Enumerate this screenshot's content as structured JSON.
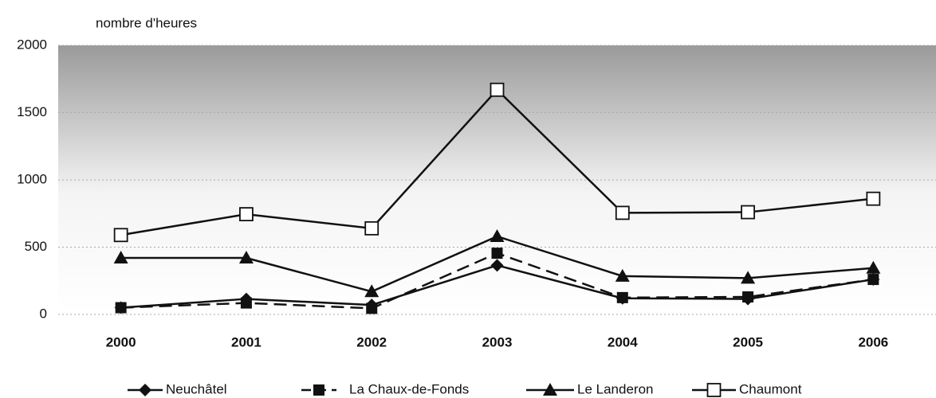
{
  "chart_data": {
    "type": "line",
    "y_axis_label": "nombre d'heures",
    "categories": [
      "2000",
      "2001",
      "2002",
      "2003",
      "2004",
      "2005",
      "2006"
    ],
    "series": [
      {
        "name": "Neuchâtel",
        "color": "#111111",
        "marker": "diamond",
        "dashed": false,
        "values": [
          50,
          115,
          70,
          365,
          120,
          115,
          260
        ]
      },
      {
        "name": "La Chaux-de-Fonds",
        "color": "#111111",
        "marker": "square",
        "dashed": true,
        "values": [
          50,
          85,
          45,
          455,
          125,
          130,
          260
        ]
      },
      {
        "name": "Le Landeron",
        "color": "#111111",
        "marker": "triangle",
        "dashed": false,
        "values": [
          420,
          420,
          170,
          580,
          285,
          270,
          345
        ]
      },
      {
        "name": "Chaumont",
        "color": "#111111",
        "marker": "open-square",
        "dashed": false,
        "values": [
          590,
          745,
          640,
          1670,
          755,
          760,
          860
        ]
      }
    ],
    "ylim": [
      0,
      2000
    ],
    "yticks": [
      0,
      500,
      1000,
      1500,
      2000
    ],
    "grid": true,
    "legend": "bottom"
  }
}
